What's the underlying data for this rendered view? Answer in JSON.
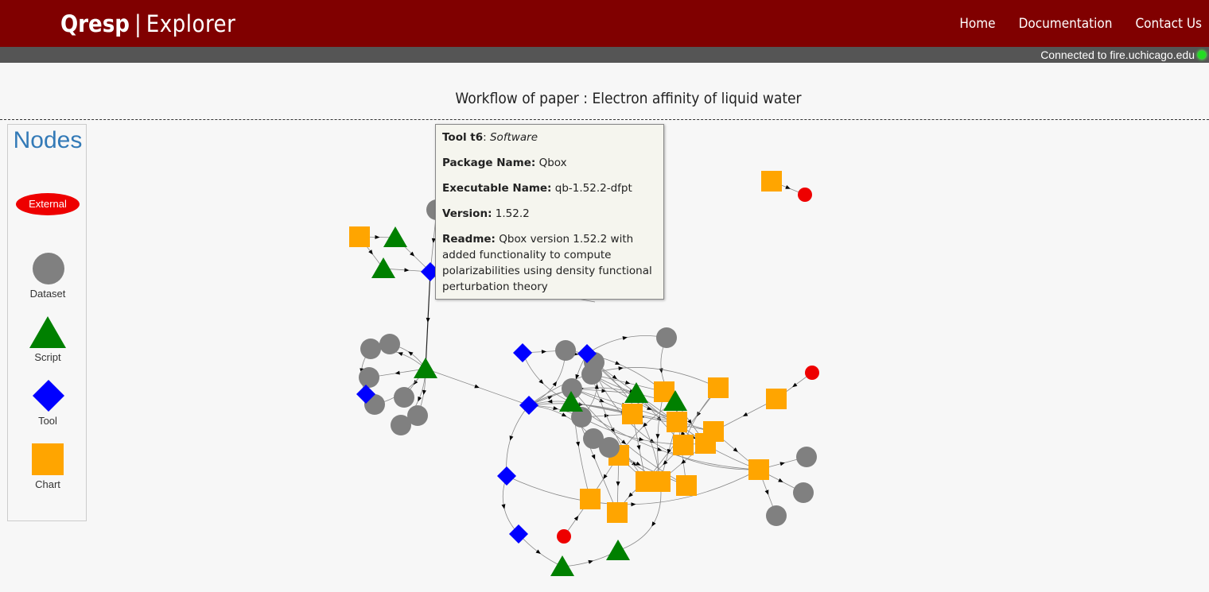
{
  "header": {
    "brand_primary": "Qresp",
    "brand_separator": "|",
    "brand_secondary": "Explorer",
    "nav": [
      {
        "label": "Home"
      },
      {
        "label": "Documentation"
      },
      {
        "label": "Contact Us"
      }
    ]
  },
  "status": {
    "text": "Connected to fire.uchicago.edu",
    "indicator": "green-dot",
    "color": "#22dd22"
  },
  "page_title": "Workflow of paper : Electron affinity of liquid water",
  "legend": {
    "title": "Nodes",
    "items": [
      {
        "label": "External",
        "shape": "ellipse",
        "color": "#ee0000"
      },
      {
        "label": "Dataset",
        "shape": "circle",
        "color": "#808080"
      },
      {
        "label": "Script",
        "shape": "triangle",
        "color": "#008000"
      },
      {
        "label": "Tool",
        "shape": "diamond",
        "color": "#0000ff"
      },
      {
        "label": "Chart",
        "shape": "square",
        "color": "#ffa500"
      }
    ]
  },
  "tooltip": {
    "id": "Tool t6",
    "id_separator": ": ",
    "type": "Software",
    "package_label": "Package Name:",
    "package_value": "Qbox",
    "executable_label": "Executable Name:",
    "executable_value": "qb-1.52.2-dfpt",
    "version_label": "Version:",
    "version_value": "1.52.2",
    "readme_label": "Readme:",
    "readme_value": "Qbox version 1.52.2 with added functionality to compute polarizabilities using density functional perturbation theory"
  },
  "colors": {
    "header_bg": "#800000",
    "statusbar_bg": "#555555",
    "external": "#ee0000",
    "dataset": "#808080",
    "script": "#008000",
    "tool": "#0000ff",
    "chart": "#ffa500"
  }
}
